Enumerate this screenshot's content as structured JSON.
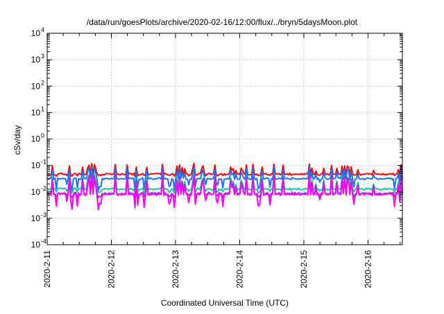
{
  "chart_data": {
    "type": "line",
    "title": "/data/run/goesPlots/archive/2020-02-16/12:00/flux/../bryn/5daysMoon.plot",
    "xlabel": "Coordinated Universal Time (UTC)",
    "ylabel": "cSv/day",
    "yscale": "log",
    "ylim": [
      0.0001,
      10000
    ],
    "xlim": [
      "2020-02-11 00:00",
      "2020-02-16 12:00"
    ],
    "grid": true,
    "y_ticks": [
      {
        "exp": -4,
        "label_base": "10",
        "label_exp": "-4"
      },
      {
        "exp": -3,
        "label_base": "10",
        "label_exp": "-3"
      },
      {
        "exp": -2,
        "label_base": "10",
        "label_exp": "-2"
      },
      {
        "exp": -1,
        "label_base": "10",
        "label_exp": "-1"
      },
      {
        "exp": 0,
        "label_base": "10",
        "label_exp": "0"
      },
      {
        "exp": 1,
        "label_base": "10",
        "label_exp": "1"
      },
      {
        "exp": 2,
        "label_base": "10",
        "label_exp": "2"
      },
      {
        "exp": 3,
        "label_base": "10",
        "label_exp": "3"
      },
      {
        "exp": 4,
        "label_base": "10",
        "label_exp": "4"
      }
    ],
    "x_ticks": [
      {
        "day": 0,
        "label": "2020-2-11"
      },
      {
        "day": 1,
        "label": "2020-2-12"
      },
      {
        "day": 2,
        "label": "2020-2-13"
      },
      {
        "day": 3,
        "label": "2020-2-14"
      },
      {
        "day": 4,
        "label": "2020-2-15"
      },
      {
        "day": 5,
        "label": "2020-2-16"
      }
    ],
    "series": [
      {
        "color": "#ff0000",
        "baseline": 0.045,
        "spike_max": 0.12,
        "dip_min": 0.04
      },
      {
        "color": "#1f6fff",
        "baseline": 0.03,
        "spike_max": 0.09,
        "dip_min": 0.011
      },
      {
        "color": "#20c0a0",
        "baseline": 0.012,
        "spike_max": 0.05,
        "dip_min": 0.009
      },
      {
        "color": "#9933cc",
        "baseline": 0.008,
        "spike_max": 0.05,
        "dip_min": 0.006
      },
      {
        "color": "#ff00ff",
        "baseline": 0.0075,
        "spike_max": 0.04,
        "dip_min": 0.0022
      }
    ]
  }
}
